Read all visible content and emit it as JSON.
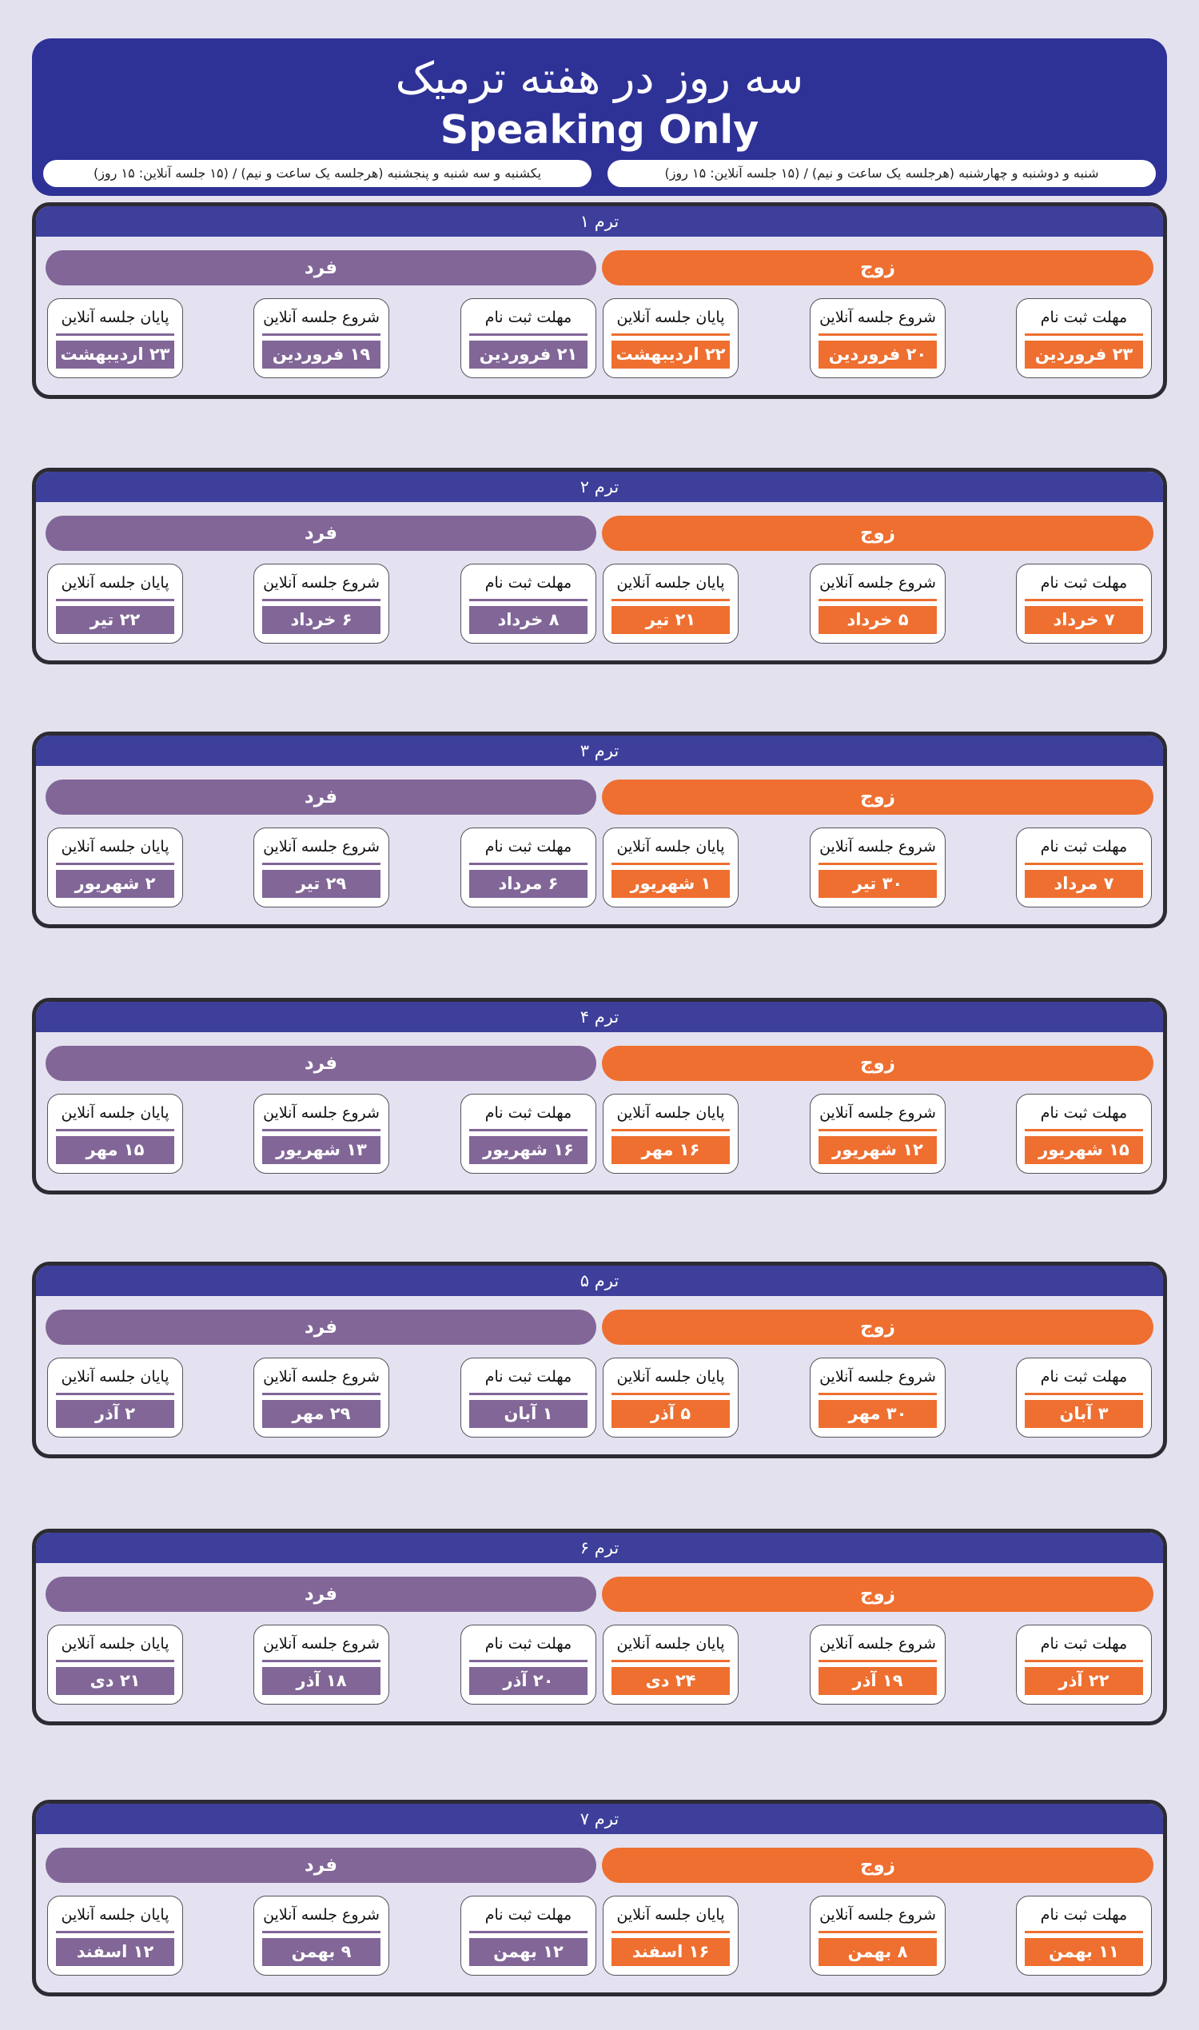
{
  "header": {
    "title": "سه روز در هفته ترمیک",
    "subtitle": "Speaking Only",
    "even_days_note": "شنبه و دوشنبه و چهارشنبه (هرجلسه یک ساعت و نیم) / (۱۵ جلسه آنلاین: ۱۵ روز)",
    "odd_days_note": "یکشنبه و سه شنبه و پنجشنبه (هرجلسه یک ساعت و نیم) / (۱۵ جلسه آنلاین: ۱۵ روز)"
  },
  "labels": {
    "even_group": "زوج",
    "odd_group": "فرد",
    "registration_deadline": "مهلت ثبت نام",
    "session_start": "شروع جلسه آنلاین",
    "session_end": "پایان جلسه آنلاین"
  },
  "colors": {
    "header_bg": "#2e3196",
    "term_header_bg": "#3d3f9b",
    "even_accent": "#ee6f30",
    "odd_accent": "#816697",
    "page_bg": "#e3e1ee"
  },
  "terms": [
    {
      "name": "ترم ۱",
      "even": {
        "deadline": "۲۳ فروردین",
        "start": "۲۰ فروردین",
        "end": "۲۲ اردیبهشت"
      },
      "odd": {
        "deadline": "۲۱ فروردین",
        "start": "۱۹ فروردین",
        "end": "۲۳ اردیبهشت"
      }
    },
    {
      "name": "ترم ۲",
      "even": {
        "deadline": "۷ خرداد",
        "start": "۵ خرداد",
        "end": "۲۱ تیر"
      },
      "odd": {
        "deadline": "۸ خرداد",
        "start": "۶ خرداد",
        "end": "۲۲ تیر"
      }
    },
    {
      "name": "ترم ۳",
      "even": {
        "deadline": "۷ مرداد",
        "start": "۳۰ تیر",
        "end": "۱ شهریور"
      },
      "odd": {
        "deadline": "۶ مرداد",
        "start": "۲۹ تیر",
        "end": "۲ شهریور"
      }
    },
    {
      "name": "ترم ۴",
      "even": {
        "deadline": "۱۵ شهریور",
        "start": "۱۲ شهریور",
        "end": "۱۶ مهر"
      },
      "odd": {
        "deadline": "۱۶ شهریور",
        "start": "۱۳ شهریور",
        "end": "۱۵ مهر"
      }
    },
    {
      "name": "ترم ۵",
      "even": {
        "deadline": "۳ آبان",
        "start": "۳۰ مهر",
        "end": "۵ آذر"
      },
      "odd": {
        "deadline": "۱ آبان",
        "start": "۲۹ مهر",
        "end": "۲ آذر"
      }
    },
    {
      "name": "ترم ۶",
      "even": {
        "deadline": "۲۲ آذر",
        "start": "۱۹ آذر",
        "end": "۲۴ دی"
      },
      "odd": {
        "deadline": "۲۰ آذر",
        "start": "۱۸ آذر",
        "end": "۲۱ دی"
      }
    },
    {
      "name": "ترم ۷",
      "even": {
        "deadline": "۱۱ بهمن",
        "start": "۸ بهمن",
        "end": "۱۶ اسفند"
      },
      "odd": {
        "deadline": "۱۲ بهمن",
        "start": "۹ بهمن",
        "end": "۱۲ اسفند"
      }
    }
  ]
}
